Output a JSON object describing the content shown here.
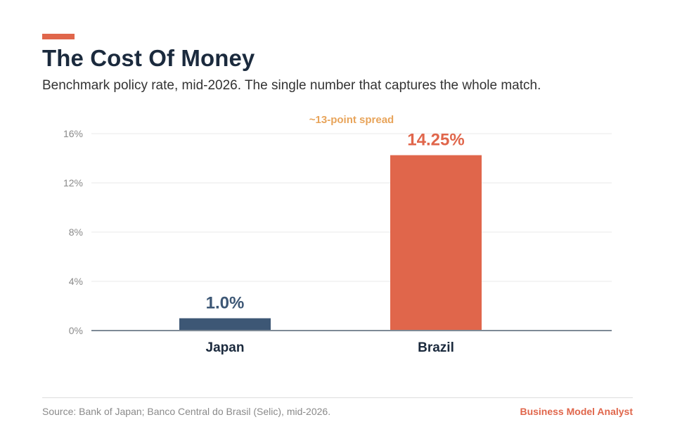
{
  "header": {
    "title": "The Cost Of Money",
    "subtitle": "Benchmark policy rate, mid-2026. The single number that captures the whole match."
  },
  "chart_data": {
    "type": "bar",
    "categories": [
      "Japan",
      "Brazil"
    ],
    "values": [
      1.0,
      14.25
    ],
    "value_labels": [
      "1.0%",
      "14.25%"
    ],
    "bar_colors": [
      "#3d5775",
      "#e0664b"
    ],
    "ylim": [
      0,
      16
    ],
    "yticks": [
      0,
      4,
      8,
      12,
      16
    ],
    "ytick_labels": [
      "0%",
      "4%",
      "8%",
      "12%",
      "16%"
    ],
    "grid": true,
    "annotation": "~13-point spread",
    "annotation_color": "#e8a45a",
    "xlabel": "",
    "ylabel": ""
  },
  "footer": {
    "source": "Source: Bank of Japan; Banco Central do Brasil (Selic), mid-2026.",
    "brand": "Business Model Analyst",
    "brand_color": "#e0664b"
  }
}
